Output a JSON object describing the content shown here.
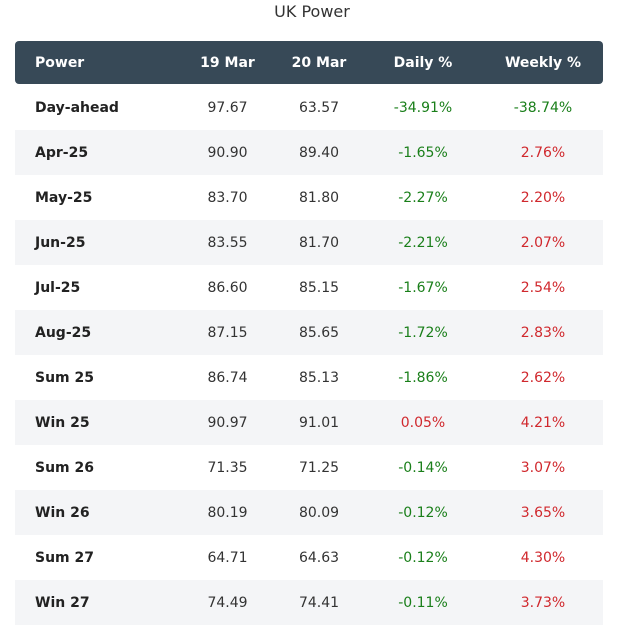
{
  "title": "UK Power",
  "headers": [
    "Power",
    "19 Mar",
    "20 Mar",
    "Daily %",
    "Weekly %"
  ],
  "rows": [
    {
      "name": "Day-ahead",
      "d19": "97.67",
      "d20": "63.57",
      "daily": "-34.91%",
      "weekly": "-38.74%"
    },
    {
      "name": "Apr-25",
      "d19": "90.90",
      "d20": "89.40",
      "daily": "-1.65%",
      "weekly": "2.76%"
    },
    {
      "name": "May-25",
      "d19": "83.70",
      "d20": "81.80",
      "daily": "-2.27%",
      "weekly": "2.20%"
    },
    {
      "name": "Jun-25",
      "d19": "83.55",
      "d20": "81.70",
      "daily": "-2.21%",
      "weekly": "2.07%"
    },
    {
      "name": "Jul-25",
      "d19": "86.60",
      "d20": "85.15",
      "daily": "-1.67%",
      "weekly": "2.54%"
    },
    {
      "name": "Aug-25",
      "d19": "87.15",
      "d20": "85.65",
      "daily": "-1.72%",
      "weekly": "2.83%"
    },
    {
      "name": "Sum 25",
      "d19": "86.74",
      "d20": "85.13",
      "daily": "-1.86%",
      "weekly": "2.62%"
    },
    {
      "name": "Win 25",
      "d19": "90.97",
      "d20": "91.01",
      "daily": "0.05%",
      "weekly": "4.21%"
    },
    {
      "name": "Sum 26",
      "d19": "71.35",
      "d20": "71.25",
      "daily": "-0.14%",
      "weekly": "3.07%"
    },
    {
      "name": "Win 26",
      "d19": "80.19",
      "d20": "80.09",
      "daily": "-0.12%",
      "weekly": "3.65%"
    },
    {
      "name": "Sum 27",
      "d19": "64.71",
      "d20": "64.63",
      "daily": "-0.12%",
      "weekly": "4.30%"
    },
    {
      "name": "Win 27",
      "d19": "74.49",
      "d20": "74.41",
      "daily": "-0.11%",
      "weekly": "3.73%"
    }
  ],
  "colors": {
    "header_bg": "#374957",
    "negative": "#1a7f1a",
    "positive": "#d0282d",
    "stripe": "#f4f5f7"
  }
}
